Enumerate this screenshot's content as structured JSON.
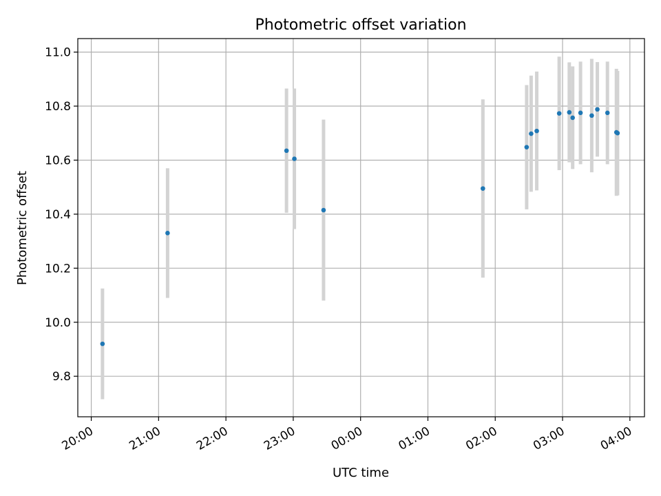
{
  "chart_data": {
    "type": "scatter",
    "title": "Photometric offset variation",
    "xlabel": "UTC time",
    "ylabel": "Photometric offset",
    "x_axis": {
      "type": "time",
      "tick_labels": [
        "20:00",
        "21:00",
        "22:00",
        "23:00",
        "00:00",
        "01:00",
        "02:00",
        "03:00",
        "04:00"
      ],
      "range": [
        "19:48",
        "04:13"
      ]
    },
    "ylim": [
      9.65,
      11.05
    ],
    "y_ticks": [
      "9.8",
      "10.0",
      "10.2",
      "10.4",
      "10.6",
      "10.8",
      "11.0"
    ],
    "grid": true,
    "legend": "none",
    "colors": {
      "point": "#1f77b4",
      "errorbar": "#d3d3d3",
      "grid": "#b0b0b0"
    },
    "series": [
      {
        "points": [
          {
            "x": "20:10",
            "y": 9.92,
            "err": 0.205
          },
          {
            "x": "21:08",
            "y": 10.33,
            "err": 0.24
          },
          {
            "x": "22:54",
            "y": 10.635,
            "err": 0.23
          },
          {
            "x": "23:01",
            "y": 10.605,
            "err": 0.26
          },
          {
            "x": "23:27",
            "y": 10.415,
            "err": 0.335
          },
          {
            "x": "01:49",
            "y": 10.495,
            "err": 0.33
          },
          {
            "x": "02:28",
            "y": 10.648,
            "err": 0.23
          },
          {
            "x": "02:32",
            "y": 10.698,
            "err": 0.215
          },
          {
            "x": "02:37",
            "y": 10.708,
            "err": 0.22
          },
          {
            "x": "02:57",
            "y": 10.773,
            "err": 0.21
          },
          {
            "x": "03:06",
            "y": 10.777,
            "err": 0.185
          },
          {
            "x": "03:09",
            "y": 10.757,
            "err": 0.19
          },
          {
            "x": "03:16",
            "y": 10.775,
            "err": 0.19
          },
          {
            "x": "03:26",
            "y": 10.765,
            "err": 0.21
          },
          {
            "x": "03:31",
            "y": 10.788,
            "err": 0.175
          },
          {
            "x": "03:40",
            "y": 10.775,
            "err": 0.19
          },
          {
            "x": "03:48",
            "y": 10.703,
            "err": 0.235
          },
          {
            "x": "03:49",
            "y": 10.7,
            "err": 0.23
          }
        ]
      }
    ]
  }
}
